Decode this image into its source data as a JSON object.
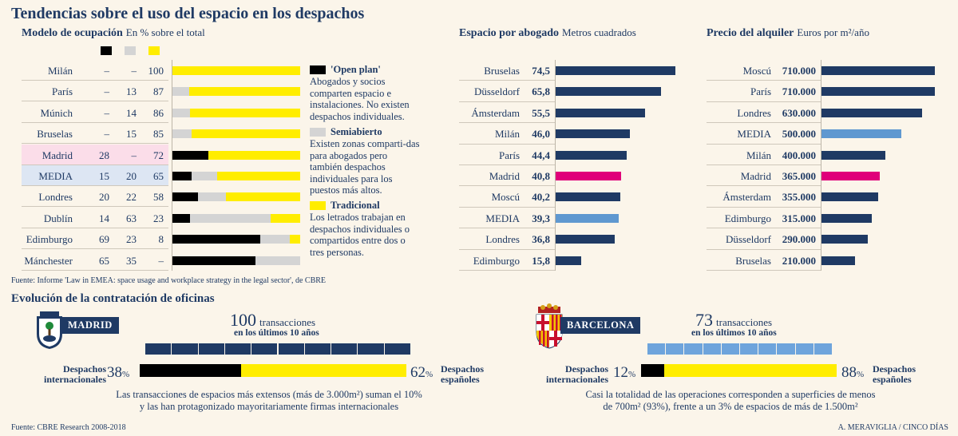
{
  "title": "Tendencias sobre el uso del espacio en los despachos",
  "colors": {
    "navy": "#1f3a64",
    "black": "#000000",
    "grey": "#d4d4d4",
    "yellow": "#ffed00",
    "pink": "#e0007a",
    "light_blue": "#5f98d0",
    "bcn_blue": "#6ea4dc"
  },
  "occupancy": {
    "title": "Modelo de ocupación",
    "subtitle": "En % sobre el total",
    "columns": [
      "Open plan",
      "Semiabierto",
      "Tradicional"
    ],
    "rows": [
      {
        "city": "Milán",
        "v1": "–",
        "v2": "–",
        "v3": "100"
      },
      {
        "city": "París",
        "v1": "–",
        "v2": "13",
        "v3": "87"
      },
      {
        "city": "Múnich",
        "v1": "–",
        "v2": "14",
        "v3": "86"
      },
      {
        "city": "Bruselas",
        "v1": "–",
        "v2": "15",
        "v3": "85"
      },
      {
        "city": "Madrid",
        "v1": "28",
        "v2": "–",
        "v3": "72"
      },
      {
        "city": "MEDIA",
        "v1": "15",
        "v2": "20",
        "v3": "65"
      },
      {
        "city": "Londres",
        "v1": "20",
        "v2": "22",
        "v3": "58"
      },
      {
        "city": "Dublín",
        "v1": "14",
        "v2": "63",
        "v3": "23"
      },
      {
        "city": "Edimburgo",
        "v1": "69",
        "v2": "23",
        "v3": "8"
      },
      {
        "city": "Mánchester",
        "v1": "65",
        "v2": "35",
        "v3": "–"
      }
    ],
    "legend": [
      {
        "title": "'Open plan'",
        "text": "Abogados y socios comparten espacio e instalaciones. No existen despachos individuales."
      },
      {
        "title": "Semiabierto",
        "text": "Existen zonas comparti-das para abogados pero también despachos individuales para los puestos más altos."
      },
      {
        "title": "Tradicional",
        "text": "Los letrados trabajan en despachos individuales o compartidos entre dos o tres personas."
      }
    ]
  },
  "space": {
    "title": "Espacio por abogado",
    "subtitle": "Metros cuadrados"
  },
  "rent": {
    "title": "Precio del alquiler",
    "subtitle": "Euros por m²/año"
  },
  "source1": "Fuente: Informe 'Law in EMEA: space usage and workplace strategy in the legal sector', de CBRE",
  "evolution": {
    "title": "Evolución de la contratación de oficinas",
    "madrid": {
      "name": "MADRID",
      "count": "100",
      "count_label": "transacciones",
      "period": "en los últimos 10 años",
      "left_label": "Despachos internacionales",
      "left_pct": "38",
      "right_label": "Despachos españoles",
      "right_pct": "62",
      "note_line1": "Las transacciones de espacios más extensos (más de 3.000m²) suman el 10%",
      "note_line2": "y las han protagonizado mayoritariamente firmas internacionales"
    },
    "barcelona": {
      "name": "BARCELONA",
      "count": "73",
      "count_label": "transacciones",
      "period": "en los últimos 10 años",
      "left_label": "Despachos internacionales",
      "left_pct": "12",
      "right_label": "Despachos españoles",
      "right_pct": "88",
      "note_line1": "Casi la totalidad de las operaciones corresponden a superficies de menos",
      "note_line2": "de 700m² (93%), frente a un 3% de espacios de más de 1.500m²"
    },
    "pct_sign": "%"
  },
  "source2": "Fuente: CBRE Research 2008-2018",
  "credit": "A. MERAVIGLIA / CINCO DÍAS",
  "chart_data": [
    {
      "type": "bar",
      "title": "Modelo de ocupación",
      "subtitle": "En % sobre el total",
      "categories": [
        "Milán",
        "París",
        "Múnich",
        "Bruselas",
        "Madrid",
        "MEDIA",
        "Londres",
        "Dublín",
        "Edimburgo",
        "Mánchester"
      ],
      "series": [
        {
          "name": "Open plan",
          "values": [
            0,
            0,
            0,
            0,
            28,
            15,
            20,
            14,
            69,
            65
          ]
        },
        {
          "name": "Semiabierto",
          "values": [
            0,
            13,
            14,
            15,
            0,
            20,
            22,
            63,
            23,
            35
          ]
        },
        {
          "name": "Tradicional",
          "values": [
            100,
            87,
            86,
            85,
            72,
            65,
            58,
            23,
            8,
            0
          ]
        }
      ],
      "stacked": true,
      "xlim": [
        0,
        100
      ]
    },
    {
      "type": "bar",
      "title": "Espacio por abogado",
      "subtitle": "Metros cuadrados",
      "categories": [
        "Bruselas",
        "Düsseldorf",
        "Ámsterdam",
        "Milán",
        "París",
        "Madrid",
        "Moscú",
        "MEDIA",
        "Londres",
        "Edimburgo"
      ],
      "values": [
        74.5,
        65.8,
        55.5,
        46.0,
        44.4,
        40.8,
        40.2,
        39.3,
        36.8,
        15.8
      ],
      "labels": [
        "74,5",
        "65,8",
        "55,5",
        "46,0",
        "44,4",
        "40,8",
        "40,2",
        "39,3",
        "36,8",
        "15,8"
      ],
      "highlight": {
        "Madrid": "#e0007a",
        "MEDIA": "#5f98d0"
      }
    },
    {
      "type": "bar",
      "title": "Precio del alquiler",
      "subtitle": "Euros por m²/año",
      "categories": [
        "Moscú",
        "París",
        "Londres",
        "MEDIA",
        "Milán",
        "Madrid",
        "Ámsterdam",
        "Edimburgo",
        "Düsseldorf",
        "Bruselas"
      ],
      "values": [
        710000,
        710000,
        630000,
        500000,
        400000,
        365000,
        355000,
        315000,
        290000,
        210000
      ],
      "labels": [
        "710.000",
        "710.000",
        "630.000",
        "500.000",
        "400.000",
        "365.000",
        "355.000",
        "315.000",
        "290.000",
        "210.000"
      ],
      "highlight": {
        "Madrid": "#e0007a",
        "MEDIA": "#5f98d0"
      }
    },
    {
      "type": "bar",
      "title": "Madrid",
      "categories": [
        "Despachos internacionales",
        "Despachos españoles"
      ],
      "values": [
        38,
        62
      ],
      "stacked": true
    },
    {
      "type": "bar",
      "title": "Barcelona",
      "categories": [
        "Despachos internacionales",
        "Despachos españoles"
      ],
      "values": [
        12,
        88
      ],
      "stacked": true
    }
  ]
}
